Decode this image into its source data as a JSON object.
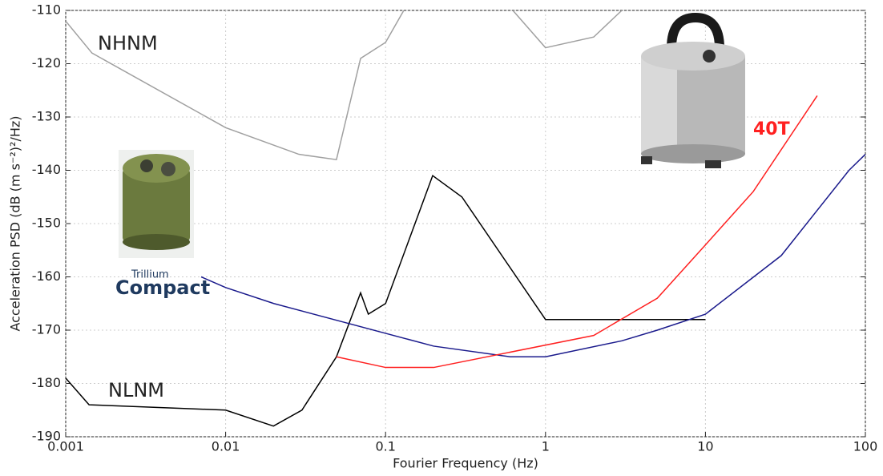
{
  "chart_data": {
    "type": "line",
    "xlabel": "Fourier Frequency (Hz)",
    "ylabel": "Acceleration PSD (dB (m s⁻²)²/Hz)",
    "xscale": "log",
    "grid": true,
    "xlim": [
      0.001,
      100
    ],
    "ylim": [
      -190,
      -110
    ],
    "xticks": [
      0.001,
      0.01,
      0.1,
      1,
      10,
      100
    ],
    "yticks": [
      -190,
      -180,
      -170,
      -160,
      -150,
      -140,
      -130,
      -120,
      -110
    ],
    "series": [
      {
        "name": "NHNM",
        "color": "#a0a0a0",
        "x": [
          0.001,
          0.00146,
          0.01,
          0.0287,
          0.0493,
          0.0698,
          0.1,
          0.13,
          0.3,
          0.625,
          1,
          2,
          3
        ],
        "values": [
          -112,
          -118,
          -132,
          -137,
          -138,
          -119,
          -116,
          -110,
          null,
          -110,
          -117,
          -115,
          -110
        ]
      },
      {
        "name": "NLNM",
        "color": "#000000",
        "x": [
          0.001,
          0.0014,
          0.01,
          0.0199,
          0.03,
          0.0493,
          0.0698,
          0.078,
          0.1,
          0.197,
          0.3,
          1,
          10
        ],
        "values": [
          -179,
          -184,
          -185,
          -188,
          -185,
          -175,
          -163,
          -167,
          -165,
          -141,
          -145,
          -168,
          -168
        ]
      },
      {
        "color": "#1a1a8c",
        "x": [
          0.00703,
          0.01,
          0.02,
          0.2,
          0.6,
          1,
          3,
          5,
          10,
          29.8,
          79,
          100
        ],
        "values": [
          -160,
          -162,
          -165,
          -173,
          -175,
          -175,
          -172,
          -170,
          -167,
          -156,
          -140,
          -137
        ]
      },
      {
        "name": "40T",
        "color": "#ff2020",
        "x": [
          0.0493,
          0.1,
          0.2,
          2,
          5,
          10,
          19.9,
          50
        ],
        "values": [
          -175,
          -177,
          -177,
          -171,
          -164,
          -154,
          -144,
          -126
        ]
      }
    ],
    "annotations": [
      "Trillium",
      "Compact"
    ]
  }
}
